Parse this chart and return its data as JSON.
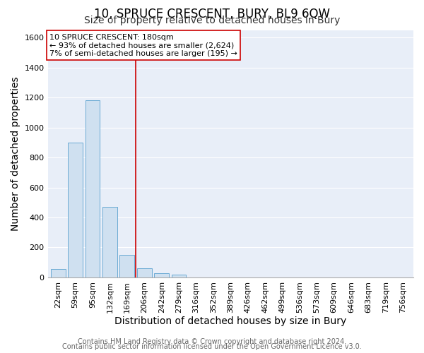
{
  "title": "10, SPRUCE CRESCENT, BURY, BL9 6QW",
  "subtitle": "Size of property relative to detached houses in Bury",
  "xlabel": "Distribution of detached houses by size in Bury",
  "ylabel": "Number of detached properties",
  "bar_labels": [
    "22sqm",
    "59sqm",
    "95sqm",
    "132sqm",
    "169sqm",
    "206sqm",
    "242sqm",
    "279sqm",
    "316sqm",
    "352sqm",
    "389sqm",
    "426sqm",
    "462sqm",
    "499sqm",
    "536sqm",
    "573sqm",
    "609sqm",
    "646sqm",
    "683sqm",
    "719sqm",
    "756sqm"
  ],
  "bar_values": [
    55,
    900,
    1180,
    470,
    150,
    60,
    30,
    20,
    0,
    0,
    0,
    0,
    0,
    0,
    0,
    0,
    0,
    0,
    0,
    0,
    0
  ],
  "bar_color": "#cfe0f0",
  "bar_edge_color": "#6aaad4",
  "vline_x": 4.5,
  "vline_color": "#cc0000",
  "ylim": [
    0,
    1650
  ],
  "yticks": [
    0,
    200,
    400,
    600,
    800,
    1000,
    1200,
    1400,
    1600
  ],
  "annotation_title": "10 SPRUCE CRESCENT: 180sqm",
  "annotation_line1": "← 93% of detached houses are smaller (2,624)",
  "annotation_line2": "7% of semi-detached houses are larger (195) →",
  "annotation_box_color": "#ffffff",
  "annotation_box_edge": "#cc0000",
  "footer1": "Contains HM Land Registry data © Crown copyright and database right 2024.",
  "footer2": "Contains public sector information licensed under the Open Government Licence v3.0.",
  "plot_bg_color": "#e8eef8",
  "fig_bg_color": "#ffffff",
  "grid_color": "#ffffff",
  "title_fontsize": 12,
  "subtitle_fontsize": 10,
  "axis_label_fontsize": 10,
  "tick_fontsize": 8,
  "annotation_fontsize": 8,
  "footer_fontsize": 7
}
